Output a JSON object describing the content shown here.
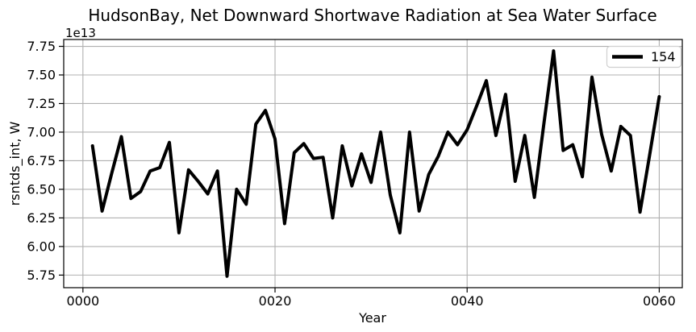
{
  "figure": {
    "title": "HudsonBay, Net Downward Shortwave Radiation at Sea Water Surface",
    "offset_text": "1e13",
    "xlabel": "Year",
    "ylabel": "rsntds_int, W",
    "legend": {
      "label": "154"
    },
    "colors": {
      "line": "#000000",
      "grid": "#b0b0b0",
      "spine": "#000000",
      "text": "#000000",
      "legend_border": "#d0d0d0",
      "background": "#ffffff"
    }
  },
  "chart_data": {
    "type": "line",
    "title": "HudsonBay, Net Downward Shortwave Radiation at Sea Water Surface",
    "xlabel": "Year",
    "ylabel": "rsntds_int, W",
    "value_multiplier": 10000000000000.0,
    "offset_text": "1e13",
    "grid": true,
    "legend_position": "upper right",
    "xlim": [
      -2.0,
      62.4
    ],
    "ylim": [
      5.64,
      7.81
    ],
    "x_ticks": [
      {
        "value": 0,
        "label": "0000"
      },
      {
        "value": 20,
        "label": "0020"
      },
      {
        "value": 40,
        "label": "0040"
      },
      {
        "value": 60,
        "label": "0060"
      }
    ],
    "y_ticks": [
      5.75,
      6.0,
      6.25,
      6.5,
      6.75,
      7.0,
      7.25,
      7.5,
      7.75
    ],
    "series": [
      {
        "name": "154",
        "x": [
          1,
          2,
          3,
          4,
          5,
          6,
          7,
          8,
          9,
          10,
          11,
          12,
          13,
          14,
          15,
          16,
          17,
          18,
          19,
          20,
          21,
          22,
          23,
          24,
          25,
          26,
          27,
          28,
          29,
          30,
          31,
          32,
          33,
          34,
          35,
          36,
          37,
          38,
          39,
          40,
          41,
          42,
          43,
          44,
          45,
          46,
          47,
          48,
          49,
          50,
          51,
          52,
          53,
          54,
          55,
          56,
          57,
          58,
          59,
          60
        ],
        "values": [
          6.88,
          6.31,
          6.64,
          6.96,
          6.42,
          6.48,
          6.66,
          6.69,
          6.91,
          6.12,
          6.67,
          6.57,
          6.46,
          6.66,
          5.74,
          6.5,
          6.37,
          7.07,
          7.19,
          6.94,
          6.2,
          6.82,
          6.9,
          6.77,
          6.78,
          6.25,
          6.88,
          6.53,
          6.81,
          6.56,
          7.0,
          6.45,
          6.12,
          7.0,
          6.31,
          6.63,
          6.79,
          7.0,
          6.89,
          7.02,
          7.23,
          7.45,
          6.97,
          7.33,
          6.57,
          6.97,
          6.43,
          7.08,
          7.71,
          6.84,
          6.89,
          6.61,
          7.48,
          6.98,
          6.66,
          7.05,
          6.97,
          6.3,
          6.8,
          7.31
        ]
      }
    ]
  }
}
